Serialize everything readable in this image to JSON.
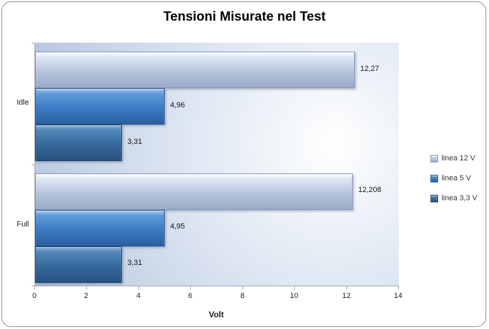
{
  "chart_data": {
    "type": "bar",
    "orientation": "horizontal",
    "title": "Tensioni Misurate nel Test",
    "xlabel": "Volt",
    "categories": [
      "Idle",
      "Full"
    ],
    "series": [
      {
        "name": "linea 12 V",
        "values": [
          12.27,
          12.208
        ],
        "value_labels": [
          "12,27",
          "12,208"
        ],
        "colors": {
          "hi": "#ffffff",
          "light": "#dde7f4",
          "base": "#b6c4db",
          "dark": "#9aabc8",
          "border": "#8496b8"
        }
      },
      {
        "name": "linea 5 V",
        "values": [
          4.96,
          4.95
        ],
        "value_labels": [
          "4,96",
          "4,95"
        ],
        "colors": {
          "hi": "#a7c8ec",
          "light": "#5f9bd8",
          "base": "#3a7cc4",
          "dark": "#2c5fa0",
          "border": "#234f88"
        }
      },
      {
        "name": "linea 3,3 V",
        "values": [
          3.31,
          3.31
        ],
        "value_labels": [
          "3,31",
          "3,31"
        ],
        "colors": {
          "hi": "#8fb2d4",
          "light": "#5287ba",
          "base": "#35689c",
          "dark": "#29527f",
          "border": "#1e4166"
        }
      }
    ],
    "xlim": [
      0,
      14
    ],
    "xticks": [
      "0",
      "2",
      "4",
      "6",
      "8",
      "10",
      "12",
      "14"
    ],
    "legend_position": "right",
    "grid": false,
    "background": {
      "plot_center": "#ffffff",
      "plot_mid": "#dde6f2",
      "plot_edge": "#b5c5df",
      "frame_border": "#8f8f8f"
    }
  }
}
